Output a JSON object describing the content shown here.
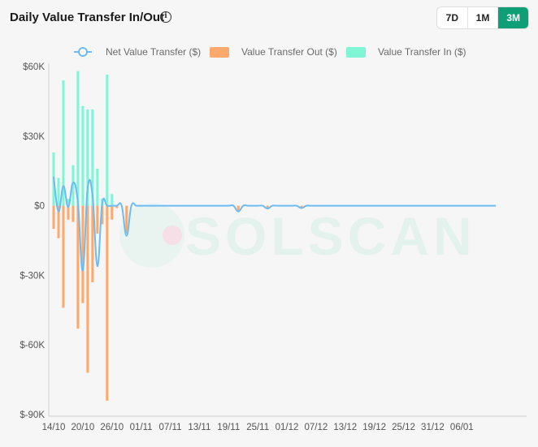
{
  "header": {
    "title": "Daily Value Transfer In/Out",
    "info_icon": "info-circle-icon",
    "ranges": [
      {
        "label": "7D",
        "active": false
      },
      {
        "label": "1M",
        "active": false
      },
      {
        "label": "3M",
        "active": true
      }
    ]
  },
  "watermark": "SOLSCAN",
  "colors": {
    "net": "#6cbcf3",
    "out": "#fda96d",
    "in": "#7ff5d6",
    "accent": "#0e9f77"
  },
  "chart_data": {
    "type": "bar",
    "y_unit": "$",
    "ylim": [
      -90000,
      60000
    ],
    "yticks": [
      60000,
      30000,
      0,
      -30000,
      -60000,
      -90000
    ],
    "ytick_labels": [
      "$60K",
      "$30K",
      "$0",
      "$-30K",
      "$-60K",
      "$-90K"
    ],
    "xtick_labels": [
      "14/10",
      "20/10",
      "26/10",
      "01/11",
      "07/11",
      "13/11",
      "19/11",
      "25/11",
      "01/12",
      "07/12",
      "13/12",
      "19/12",
      "25/12",
      "31/12",
      "06/01"
    ],
    "x_start": "14/10",
    "grid": false,
    "legend_position": "top",
    "series": [
      {
        "name": "Net Value Transfer ($)",
        "type": "line",
        "values": [
          12500,
          -2500,
          8500,
          -600,
          10000,
          1200,
          -28000,
          7500,
          4500,
          -26000,
          1000,
          0,
          0,
          0,
          0,
          -13000,
          0,
          0,
          0,
          0,
          0,
          0,
          0,
          0,
          0,
          0,
          0,
          0,
          0,
          0,
          0,
          0,
          0,
          0,
          0,
          0,
          0,
          0,
          -2500,
          0,
          0,
          0,
          0,
          0,
          -1200,
          0,
          0,
          0,
          0,
          0,
          0,
          -1000,
          0,
          0,
          0,
          0,
          0,
          0,
          0,
          0,
          0,
          0,
          0,
          0,
          0,
          0,
          0,
          0,
          0,
          0,
          0,
          0,
          0,
          0,
          0,
          0,
          0,
          0,
          0,
          0,
          0,
          0,
          0,
          0,
          0,
          0,
          0,
          0,
          0,
          0,
          0,
          0
        ]
      },
      {
        "name": "Value Transfer Out ($)",
        "type": "bar",
        "values": [
          -10000,
          -14000,
          -44000,
          -6000,
          -7000,
          -53000,
          -42000,
          -72000,
          -33000,
          -12000,
          -8000,
          -84000,
          -6000,
          -1000,
          0,
          -12000,
          0,
          0,
          0,
          0,
          0,
          0,
          0,
          0,
          0,
          0,
          0,
          0,
          0,
          0,
          0,
          0,
          0,
          0,
          0,
          0,
          0,
          0,
          -2500,
          0,
          0,
          0,
          0,
          0,
          -1200,
          0,
          0,
          0,
          0,
          0,
          0,
          -1000,
          0,
          0,
          0,
          0,
          0,
          0,
          0,
          0,
          0,
          0,
          0,
          0,
          0,
          0,
          0,
          0,
          0,
          0,
          0,
          0,
          0,
          0,
          0,
          0,
          0,
          0,
          0,
          0,
          0,
          0,
          0,
          0,
          0,
          0,
          0,
          0,
          0,
          0,
          0,
          0
        ]
      },
      {
        "name": "Value Transfer In ($)",
        "type": "bar",
        "values": [
          23000,
          12000,
          54000,
          3000,
          17500,
          58000,
          43000,
          41500,
          41500,
          16000,
          3000,
          56500,
          5000,
          0,
          0,
          0,
          0,
          0,
          0,
          0,
          0,
          0,
          0,
          0,
          0,
          0,
          0,
          0,
          0,
          0,
          0,
          0,
          0,
          0,
          0,
          0,
          0,
          0,
          0,
          0,
          0,
          0,
          0,
          0,
          0,
          0,
          0,
          0,
          0,
          0,
          0,
          0,
          0,
          0,
          0,
          0,
          0,
          0,
          0,
          0,
          0,
          0,
          0,
          0,
          0,
          0,
          0,
          0,
          0,
          0,
          0,
          0,
          0,
          0,
          0,
          0,
          0,
          0,
          0,
          0,
          0,
          0,
          0,
          0,
          0,
          0,
          0,
          0,
          0,
          0,
          0,
          0
        ]
      }
    ]
  }
}
